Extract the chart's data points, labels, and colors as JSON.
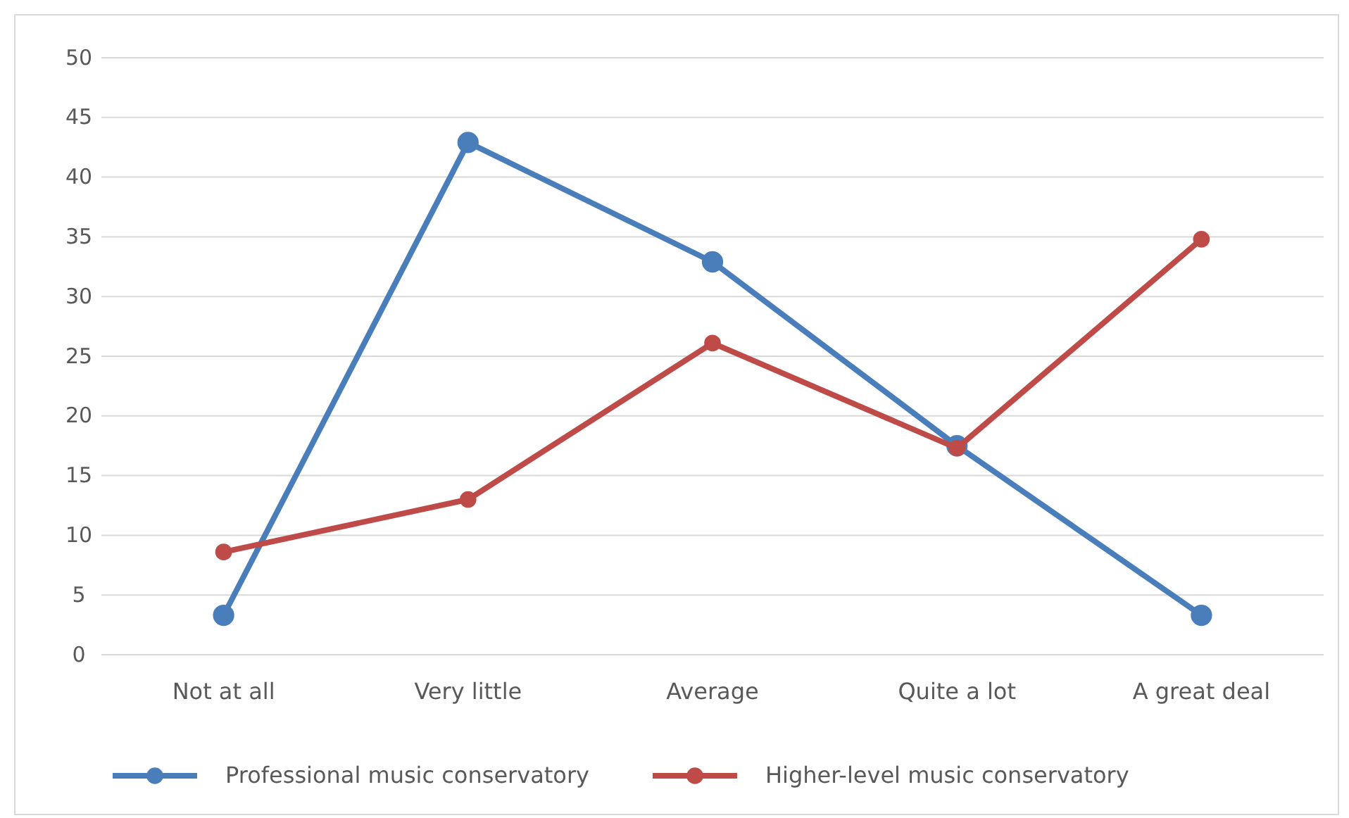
{
  "chart_data": {
    "type": "line",
    "categories": [
      "Not at all",
      "Very little",
      "Average",
      "Quite a lot",
      "A great deal"
    ],
    "series": [
      {
        "name": "Professional music conservatory",
        "color": "#4a7ebb",
        "values": [
          3.3,
          42.9,
          32.9,
          17.5,
          3.3
        ]
      },
      {
        "name": "Higher-level music conservatory",
        "color": "#be4b48",
        "values": [
          8.6,
          13.0,
          26.1,
          17.3,
          34.8
        ]
      }
    ],
    "ylim": [
      0,
      50
    ],
    "yticks": [
      0,
      5,
      10,
      15,
      20,
      25,
      30,
      35,
      40,
      45,
      50
    ],
    "grid": "y",
    "legend": "bottom",
    "marker": "circle",
    "line_style": "solid"
  }
}
